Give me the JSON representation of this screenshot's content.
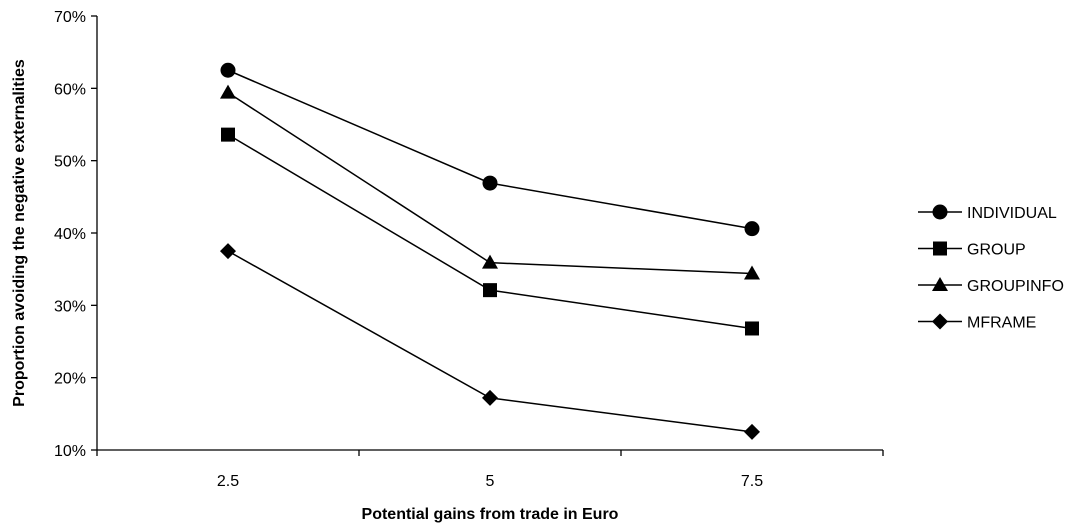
{
  "chart_data": {
    "type": "line",
    "x": [
      "2.5",
      "5",
      "7.5"
    ],
    "xlabel": "Potential gains from trade in Euro",
    "ylabel": "Proportion avoiding the negative externalities",
    "ylim": [
      0.1,
      0.7
    ],
    "yticks": [
      "10%",
      "20%",
      "30%",
      "40%",
      "50%",
      "60%",
      "70%"
    ],
    "grid": false,
    "legend": "right",
    "series": [
      {
        "name": "INDIVIDUAL",
        "marker": "circle",
        "values": [
          0.625,
          0.469,
          0.406
        ]
      },
      {
        "name": "GROUP",
        "marker": "square",
        "values": [
          0.536,
          0.321,
          0.268
        ]
      },
      {
        "name": "GROUPINFO",
        "marker": "triangle",
        "values": [
          0.594,
          0.359,
          0.344
        ]
      },
      {
        "name": "MFRAME",
        "marker": "diamond",
        "values": [
          0.375,
          0.172,
          0.125
        ]
      }
    ]
  }
}
